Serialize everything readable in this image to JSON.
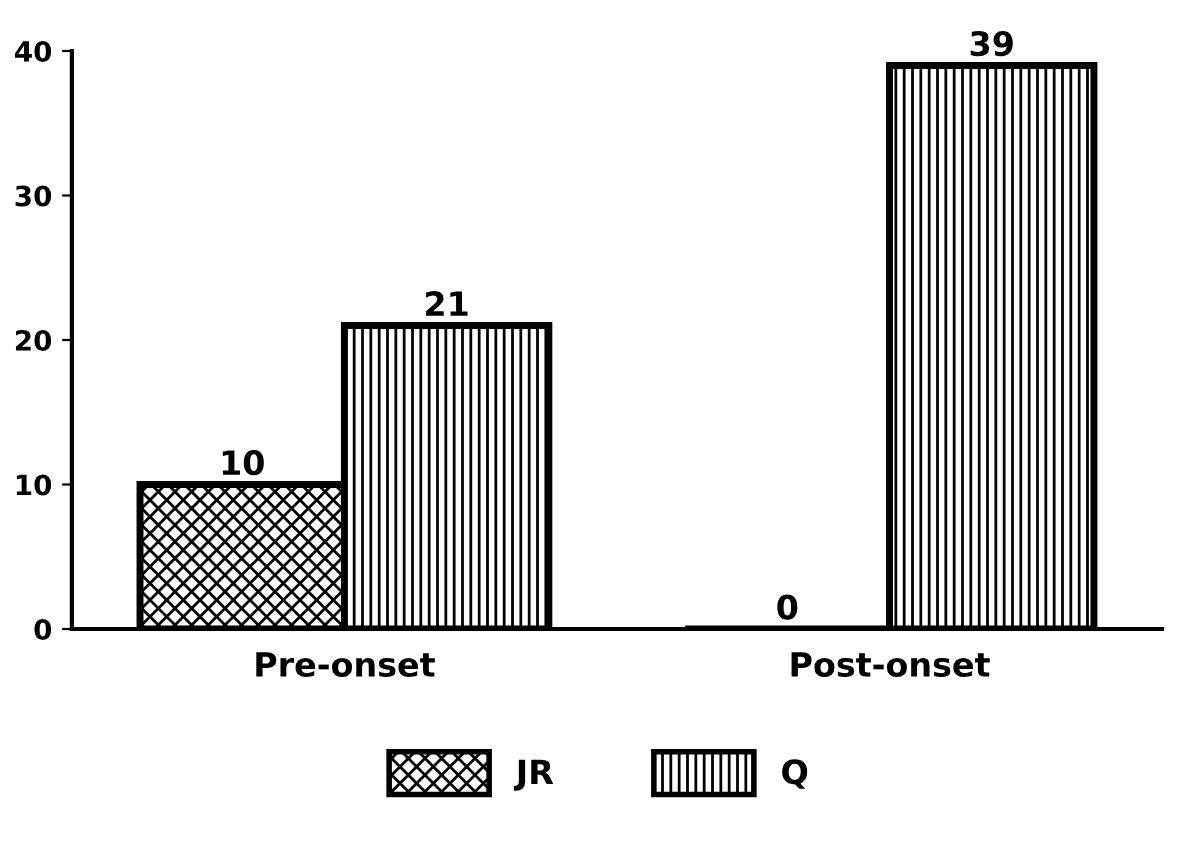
{
  "chart_data": {
    "type": "bar",
    "categories": [
      "Pre-onset",
      "Post-onset"
    ],
    "series": [
      {
        "name": "JR",
        "color": "#000000",
        "values": [
          10,
          0
        ]
      },
      {
        "name": "Q",
        "color": "#000000",
        "values": [
          21,
          39
        ]
      }
    ],
    "ylim": [
      0,
      40
    ],
    "yticks": [
      0,
      10,
      20,
      30,
      40
    ],
    "data_labels": true,
    "grid": false,
    "legend": "bottom"
  }
}
